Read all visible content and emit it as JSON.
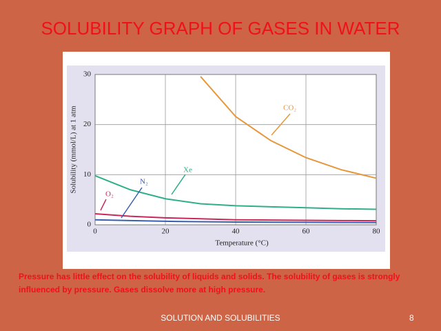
{
  "title": "SOLUBILITY GRAPH OF GASES IN WATER",
  "caption": "Pressure has little effect on the solubility of liquids and solids. The solubility of gases is strongly influenced by pressure. Gases dissolve more at high pressure.",
  "footer": "SOLUTION AND SOLUBILITIES",
  "page_number": "8",
  "chart_data": {
    "type": "line",
    "x_label": "Temperature (°C)",
    "y_label": "Solubility (mmol/L) at 1 atm",
    "x": [
      0,
      10,
      20,
      30,
      40,
      50,
      60,
      70,
      80
    ],
    "xlim": [
      0,
      80
    ],
    "xticks": [
      0,
      20,
      40,
      60,
      80
    ],
    "ylim": [
      0,
      30
    ],
    "yticks": [
      0,
      10,
      20,
      30
    ],
    "grid": true,
    "series": [
      {
        "name": "CO₂",
        "color": "#e8963a",
        "values": [
          null,
          null,
          null,
          29.6,
          21.6,
          16.8,
          13.4,
          11.0,
          9.3
        ]
      },
      {
        "name": "Xe",
        "color": "#2fae8a",
        "values": [
          9.8,
          7.0,
          5.2,
          4.2,
          3.8,
          3.6,
          3.4,
          3.2,
          3.1
        ]
      },
      {
        "name": "O₂",
        "color": "#c8285a",
        "values": [
          2.2,
          1.7,
          1.4,
          1.2,
          1.0,
          0.95,
          0.9,
          0.85,
          0.8
        ]
      },
      {
        "name": "N₂",
        "color": "#3a5fb0",
        "values": [
          1.0,
          0.85,
          0.7,
          0.62,
          0.55,
          0.52,
          0.5,
          0.47,
          0.45
        ]
      }
    ]
  }
}
